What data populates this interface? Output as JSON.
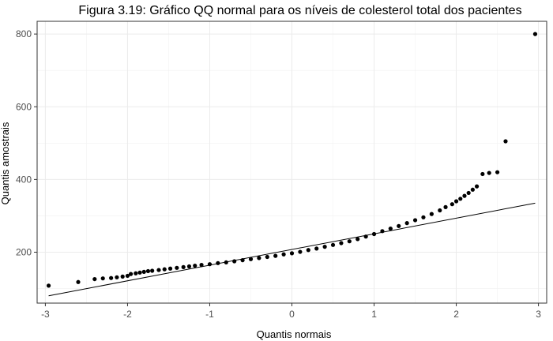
{
  "chart_data": {
    "type": "scatter",
    "title": "Figura 3.19: Gráfico QQ normal para os níveis de colesterol total dos pacientes",
    "xlabel": "Quantis normais",
    "ylabel": "Quantis amostrais",
    "xlim": [
      -3.1,
      3.1
    ],
    "ylim": [
      60,
      835
    ],
    "xticks": [
      -3,
      -2,
      -1,
      0,
      1,
      2,
      3
    ],
    "yticks": [
      200,
      400,
      600,
      800
    ],
    "grid": true,
    "reference_line": {
      "x": [
        -2.96,
        2.96
      ],
      "y": [
        80,
        335
      ]
    },
    "series": [
      {
        "points": [
          [
            -2.96,
            108
          ],
          [
            -2.6,
            118
          ],
          [
            -2.4,
            126
          ],
          [
            -2.3,
            128
          ],
          [
            -2.2,
            129
          ],
          [
            -2.13,
            131
          ],
          [
            -2.06,
            133
          ],
          [
            -2.0,
            135
          ],
          [
            -1.96,
            140
          ],
          [
            -1.9,
            142
          ],
          [
            -1.85,
            144
          ],
          [
            -1.8,
            146
          ],
          [
            -1.75,
            148
          ],
          [
            -1.7,
            149
          ],
          [
            -1.62,
            151
          ],
          [
            -1.55,
            153
          ],
          [
            -1.48,
            155
          ],
          [
            -1.4,
            157
          ],
          [
            -1.32,
            159
          ],
          [
            -1.25,
            161
          ],
          [
            -1.18,
            163
          ],
          [
            -1.1,
            165
          ],
          [
            -1.0,
            167
          ],
          [
            -0.9,
            170
          ],
          [
            -0.8,
            172
          ],
          [
            -0.7,
            175
          ],
          [
            -0.6,
            178
          ],
          [
            -0.5,
            181
          ],
          [
            -0.4,
            184
          ],
          [
            -0.3,
            187
          ],
          [
            -0.2,
            190
          ],
          [
            -0.1,
            194
          ],
          [
            0.0,
            197
          ],
          [
            0.1,
            201
          ],
          [
            0.2,
            206
          ],
          [
            0.3,
            210
          ],
          [
            0.4,
            215
          ],
          [
            0.5,
            220
          ],
          [
            0.6,
            225
          ],
          [
            0.7,
            230
          ],
          [
            0.8,
            236
          ],
          [
            0.9,
            243
          ],
          [
            1.0,
            250
          ],
          [
            1.1,
            258
          ],
          [
            1.2,
            265
          ],
          [
            1.3,
            272
          ],
          [
            1.4,
            280
          ],
          [
            1.5,
            288
          ],
          [
            1.6,
            296
          ],
          [
            1.7,
            305
          ],
          [
            1.8,
            315
          ],
          [
            1.87,
            324
          ],
          [
            1.95,
            332
          ],
          [
            2.0,
            340
          ],
          [
            2.05,
            347
          ],
          [
            2.1,
            355
          ],
          [
            2.15,
            363
          ],
          [
            2.2,
            372
          ],
          [
            2.25,
            381
          ],
          [
            2.32,
            415
          ],
          [
            2.4,
            418
          ],
          [
            2.5,
            420
          ],
          [
            2.6,
            505
          ],
          [
            2.96,
            800
          ]
        ]
      }
    ]
  }
}
